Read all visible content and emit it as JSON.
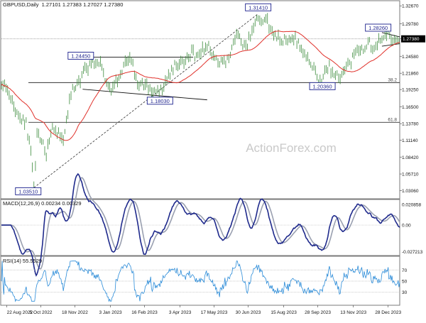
{
  "chart_data": {
    "type": "line",
    "symbol": "GBPUSD",
    "timeframe": "Daily",
    "ohlc": [
      "1.27101",
      "1.27383",
      "1.27027",
      "1.27380"
    ],
    "watermark": "ActionForex.com",
    "colors": {
      "price": "#3a8a3a",
      "sma": "#e0302a",
      "macd": "#1f2a8c",
      "signal": "#9aa0b0",
      "rsi": "#2a8bd8",
      "level_line": "#333333",
      "label_border": "#1a1f8c",
      "current_label_bg": "#000000"
    },
    "x_tick_labels": [
      "22 Aug 2022",
      "5 Oct 2022",
      "18 Nov 2022",
      "3 Jan 2023",
      "16 Feb 2023",
      "3 Apr 2023",
      "17 May 2023",
      "30 Jun 2023",
      "15 Aug 2023",
      "28 Sep 2023",
      "13 Nov 2023",
      "28 Dec 2023"
    ],
    "price_panel": {
      "ylim": [
        1.0185,
        1.3338
      ],
      "y_ticks": [
        "1.32670",
        "1.29780",
        "1.27380",
        "1.24580",
        "1.21860",
        "1.19250",
        "1.16500",
        "1.13780",
        "1.11140",
        "1.08420",
        "1.05710",
        "1.03060"
      ],
      "current": "1.27380",
      "labels": [
        {
          "text": "1.31410",
          "date": "2023-07-13"
        },
        {
          "text": "1.28260",
          "date": "2023-12-28"
        },
        {
          "text": "1.24450",
          "date": "2022-12-14"
        },
        {
          "text": "1.18030",
          "date": "2023-03-08"
        },
        {
          "text": "1.20360",
          "date": "2023-10-04"
        },
        {
          "text": "1.03510",
          "date": "2022-09-26"
        }
      ],
      "fib_levels": [
        {
          "label": "38.2",
          "value": 1.2036
        },
        {
          "label": "61.8",
          "value": 1.1399
        }
      ]
    },
    "macd_panel": {
      "header": "MACD(12,26,9) 0.00234 0.00329",
      "ylim": [
        -0.0303,
        0.0246
      ],
      "y_ticks": [
        "0.020858",
        "0.00",
        "-0.027213"
      ]
    },
    "rsi_panel": {
      "header": "RSI(14) 55.5529",
      "ylim": [
        8,
        92
      ],
      "y_ticks": [
        "70",
        "50",
        "30"
      ]
    }
  }
}
